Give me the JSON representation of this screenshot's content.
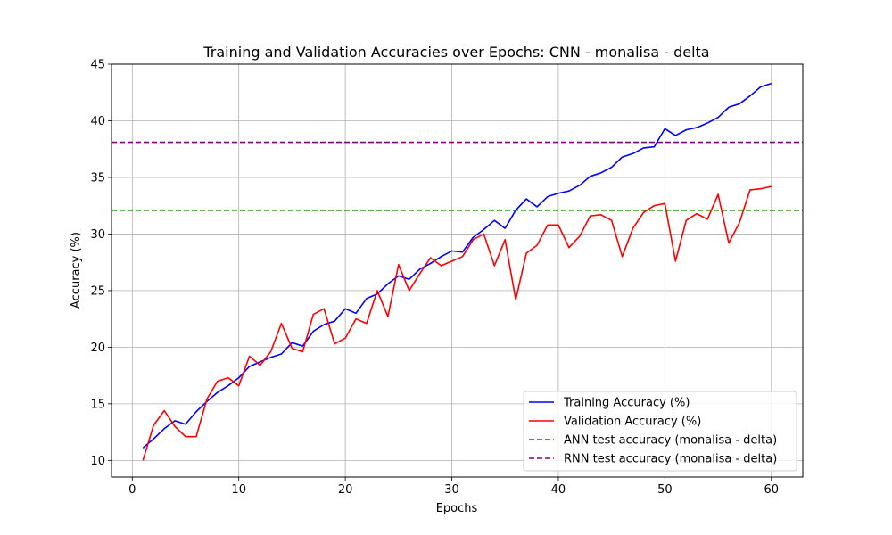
{
  "chart_data": {
    "type": "line",
    "title": "Training and Validation Accuracies over Epochs: CNN - monalisa - delta",
    "xlabel": "Epochs",
    "ylabel": "Accuracy (%)",
    "xlim": [
      -1.95,
      62.95
    ],
    "ylim": [
      8.53,
      45
    ],
    "xticks": [
      0,
      10,
      20,
      30,
      40,
      50,
      60
    ],
    "yticks": [
      10,
      15,
      20,
      25,
      30,
      35,
      40,
      45
    ],
    "grid": true,
    "legend_position": "lower right",
    "x": [
      1,
      2,
      3,
      4,
      5,
      6,
      7,
      8,
      9,
      10,
      11,
      12,
      13,
      14,
      15,
      16,
      17,
      18,
      19,
      20,
      21,
      22,
      23,
      24,
      25,
      26,
      27,
      28,
      29,
      30,
      31,
      32,
      33,
      34,
      35,
      36,
      37,
      38,
      39,
      40,
      41,
      42,
      43,
      44,
      45,
      46,
      47,
      48,
      49,
      50,
      51,
      52,
      53,
      54,
      55,
      56,
      57,
      58,
      59,
      60
    ],
    "series": [
      {
        "name": "Training Accuracy (%)",
        "color": "#0000ff",
        "style": "solid",
        "values": [
          11.1,
          11.9,
          12.8,
          13.5,
          13.2,
          14.3,
          15.2,
          16.0,
          16.6,
          17.3,
          18.3,
          18.7,
          19.1,
          19.4,
          20.4,
          20.1,
          21.4,
          22.0,
          22.3,
          23.4,
          23.0,
          24.3,
          24.7,
          25.6,
          26.3,
          26.0,
          26.9,
          27.4,
          28.0,
          28.5,
          28.4,
          29.7,
          30.4,
          31.2,
          30.5,
          32.1,
          33.1,
          32.4,
          33.3,
          33.6,
          33.8,
          34.3,
          35.1,
          35.4,
          35.9,
          36.8,
          37.1,
          37.6,
          37.7,
          39.3,
          38.7,
          39.2,
          39.4,
          39.8,
          40.3,
          41.2,
          41.5,
          42.2,
          43.0,
          43.3
        ]
      },
      {
        "name": "Validation Accuracy (%)",
        "color": "#ff0000",
        "style": "solid",
        "values": [
          10.0,
          13.1,
          14.4,
          13.0,
          12.1,
          12.1,
          15.4,
          17.0,
          17.3,
          16.6,
          19.2,
          18.4,
          19.6,
          22.1,
          19.9,
          19.6,
          22.9,
          23.4,
          20.3,
          20.8,
          22.5,
          22.1,
          25.0,
          22.7,
          27.3,
          25.0,
          26.5,
          27.9,
          27.2,
          27.6,
          28.0,
          29.5,
          30.0,
          27.2,
          29.5,
          24.2,
          28.3,
          29.0,
          30.8,
          30.8,
          28.8,
          29.8,
          31.6,
          31.7,
          31.2,
          28.0,
          30.5,
          31.9,
          32.5,
          32.7,
          27.6,
          31.2,
          31.8,
          31.3,
          33.5,
          29.2,
          31.0,
          33.9,
          34.0,
          34.2
        ]
      }
    ],
    "reference_lines": [
      {
        "name": "ANN test accuracy (monalisa - delta)",
        "color": "#008000",
        "style": "dashed",
        "y": 32.1
      },
      {
        "name": "RNN test accuracy (monalisa - delta)",
        "color": "#800080",
        "style": "dashed",
        "y": 38.1
      }
    ]
  }
}
